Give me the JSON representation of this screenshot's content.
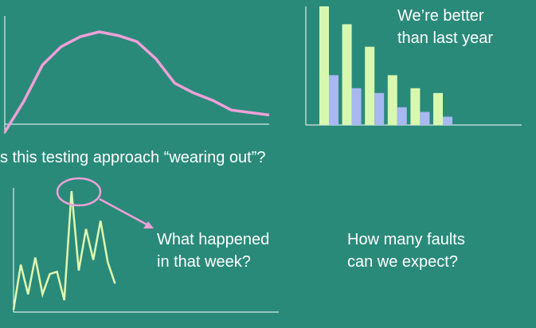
{
  "colors": {
    "background": "#2a8a7a",
    "axis": "#ffffff",
    "curve": "#f0a0d8",
    "bar_current": "#d8f8b0",
    "bar_last": "#a8b8f0",
    "spike_line": "#e0f8b0",
    "annotation": "#f0a0d8"
  },
  "texts": {
    "better_line1": "We’re better",
    "better_line2": "than last year",
    "question": "s this testing approach “wearing out”?",
    "happened_line1": "What happened",
    "happened_line2": "in that week?",
    "faults_line1": "How many faults",
    "faults_line2": "can we expect?"
  },
  "chart_data": [
    {
      "type": "line",
      "title": "",
      "x": [
        0,
        1,
        2,
        3,
        4,
        5,
        6,
        7,
        8,
        9,
        10,
        11,
        12,
        13,
        14
      ],
      "series": [
        {
          "values": [
            0,
            25,
            55,
            70,
            78,
            82,
            79,
            74,
            60,
            40,
            32,
            26,
            18,
            16,
            14
          ]
        }
      ],
      "ylim": [
        0,
        95
      ]
    },
    {
      "type": "bar",
      "title": "",
      "categories": [
        "1",
        "2",
        "3",
        "4",
        "5",
        "6"
      ],
      "series": [
        {
          "values": [
            100,
            85,
            66,
            42,
            31,
            27
          ]
        },
        {
          "values": [
            42,
            31,
            27,
            15,
            11,
            7
          ]
        }
      ],
      "ylim": [
        0,
        100
      ]
    },
    {
      "type": "line",
      "title": "",
      "x": [
        0,
        1,
        2,
        3,
        4,
        5,
        6,
        7,
        8,
        9,
        10,
        11,
        12,
        13,
        14,
        15,
        16
      ],
      "series": [
        {
          "values": [
            0,
            38,
            13,
            44,
            13,
            30,
            32,
            8,
            100,
            33,
            68,
            42,
            75,
            40,
            22,
            0,
            0
          ]
        }
      ],
      "ylim": [
        0,
        110
      ]
    }
  ]
}
